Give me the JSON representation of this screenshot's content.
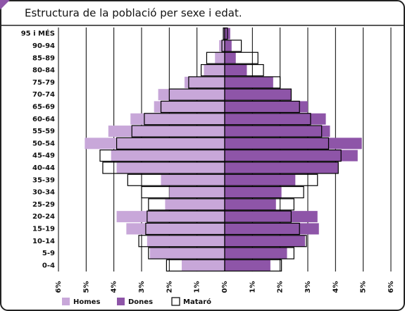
{
  "chart_data": {
    "type": "pyramid",
    "title": "Estructura de la població per sexe i edat.",
    "categories": [
      "95 i MÉS",
      "90-94",
      "85-89",
      "80-84",
      "75-79",
      "70-74",
      "65-69",
      "60-64",
      "55-59",
      "50-54",
      "45-49",
      "40-44",
      "35-39",
      "30-34",
      "25-29",
      "20-24",
      "15-19",
      "10-14",
      "5-9",
      "0-4"
    ],
    "series": [
      {
        "name": "Homes",
        "color": "#c8a7d9",
        "side": "left",
        "values": [
          0.05,
          0.2,
          0.35,
          0.75,
          1.45,
          2.4,
          2.55,
          3.4,
          4.2,
          5.05,
          4.1,
          3.9,
          2.3,
          2.0,
          2.15,
          3.9,
          3.55,
          2.8,
          2.7,
          1.55
        ]
      },
      {
        "name": "Dones",
        "color": "#8e55a8",
        "side": "right",
        "values": [
          0.2,
          0.25,
          0.4,
          0.8,
          1.75,
          2.4,
          3.0,
          3.65,
          3.8,
          4.95,
          4.8,
          4.1,
          2.55,
          2.05,
          1.85,
          3.35,
          3.4,
          2.9,
          2.25,
          1.65
        ]
      },
      {
        "name": "Mataró",
        "color": "#000000",
        "homes": [
          0.05,
          0.1,
          0.65,
          0.85,
          1.3,
          2.0,
          2.3,
          2.9,
          3.35,
          3.9,
          4.5,
          4.4,
          3.5,
          3.0,
          2.75,
          2.8,
          2.85,
          3.1,
          2.75,
          2.1
        ],
        "dones": [
          0.1,
          0.6,
          1.2,
          1.4,
          2.0,
          2.4,
          2.7,
          3.1,
          3.5,
          3.75,
          4.2,
          4.1,
          3.35,
          2.85,
          2.5,
          2.4,
          2.7,
          2.95,
          2.5,
          2.05
        ]
      }
    ],
    "xlim": [
      -6,
      6
    ],
    "xticks": [
      {
        "value": -6,
        "label": "6%"
      },
      {
        "value": -5,
        "label": "5%"
      },
      {
        "value": -4,
        "label": "4%"
      },
      {
        "value": -3,
        "label": "3%"
      },
      {
        "value": -2,
        "label": "2%"
      },
      {
        "value": -1,
        "label": "1%"
      },
      {
        "value": 0,
        "label": "0%"
      },
      {
        "value": 1,
        "label": "1%"
      },
      {
        "value": 2,
        "label": "2%"
      },
      {
        "value": 3,
        "label": "3%"
      },
      {
        "value": 4,
        "label": "4%"
      },
      {
        "value": 5,
        "label": "5%"
      },
      {
        "value": 6,
        "label": "6%"
      }
    ],
    "grid": true
  }
}
